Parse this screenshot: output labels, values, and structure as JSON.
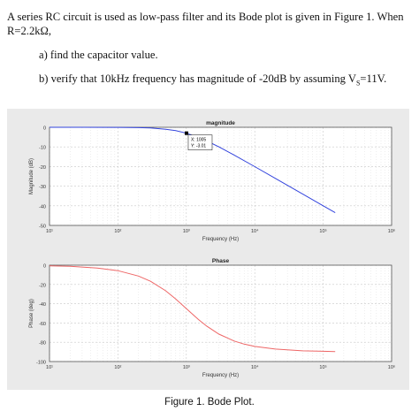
{
  "question": {
    "intro_line1": "A series RC circuit is used as low-pass filter and its Bode plot is given in Figure 1. When",
    "intro_line2": "R=2.2kΩ,",
    "part_a": "a) find  the capacitor value.",
    "part_b_prefix": "b) verify that 10kHz frequency has magnitude of -20dB by assuming V",
    "part_b_subscript": "S",
    "part_b_suffix": "=11V."
  },
  "figure": {
    "caption": "Figure 1. Bode Plot.",
    "background": "#eaeaea"
  },
  "chart_data": [
    {
      "type": "line",
      "title": "magnitude",
      "xlabel": "Frequency (Hz)",
      "ylabel": "Magnitude (dB)",
      "xscale": "log",
      "xlim": [
        10,
        1000000
      ],
      "ylim": [
        -50,
        0
      ],
      "xticks": [
        "10¹",
        "10²",
        "10³",
        "10⁴",
        "10⁵",
        "10⁶"
      ],
      "yticks": [
        "0",
        "-10",
        "-20",
        "-30",
        "-40",
        "-50"
      ],
      "grid": true,
      "color": "#3344dd",
      "x": [
        10,
        30,
        100,
        200,
        300,
        500,
        700,
        1005,
        1500,
        2000,
        3000,
        5000,
        10000,
        20000,
        50000,
        100000,
        150000
      ],
      "y": [
        0,
        0,
        -0.04,
        -0.17,
        -0.37,
        -0.97,
        -1.7,
        -3.01,
        -5.2,
        -6.99,
        -10.0,
        -14.15,
        -20.04,
        -26.03,
        -33.98,
        -39.98,
        -43.5
      ],
      "datatip": {
        "x_label": "X: 1005",
        "y_label": "Y: -3.01",
        "x": 1005,
        "y": -3.01
      }
    },
    {
      "type": "line",
      "title": "Phase",
      "xlabel": "Frequency (Hz)",
      "ylabel": "Phase (deg)",
      "xscale": "log",
      "xlim": [
        10,
        1000000
      ],
      "ylim": [
        -100,
        0
      ],
      "xticks": [
        "10¹",
        "10²",
        "10³",
        "10⁴",
        "10⁵",
        "10⁶"
      ],
      "yticks": [
        "0",
        "-20",
        "-40",
        "-60",
        "-80",
        "-100"
      ],
      "grid": true,
      "color": "#ee6666",
      "x": [
        10,
        20,
        50,
        100,
        200,
        300,
        500,
        700,
        1000,
        1500,
        2000,
        3000,
        5000,
        7000,
        10000,
        20000,
        50000,
        100000,
        150000
      ],
      "y": [
        -0.6,
        -1.1,
        -2.9,
        -5.7,
        -11.3,
        -16.7,
        -26.6,
        -35.0,
        -45.0,
        -56.3,
        -63.4,
        -71.6,
        -78.7,
        -81.9,
        -84.3,
        -87.1,
        -88.9,
        -89.4,
        -89.6
      ]
    }
  ]
}
